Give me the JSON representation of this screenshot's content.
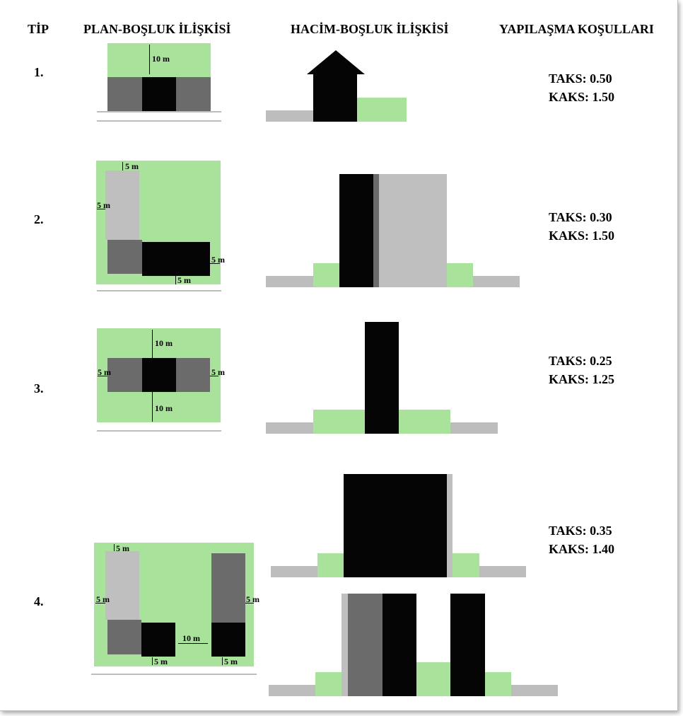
{
  "colors": {
    "green": "#a9e29a",
    "black": "#050505",
    "dark_gray": "#6b6b6b",
    "light_gray": "#bfbfbf",
    "ground": "#bdbdbd"
  },
  "headers": {
    "tip": "TİP",
    "plan": "PLAN-BOŞLUK İLİŞKİSİ",
    "hacim": "HACİM-BOŞLUK İLİŞKİSİ",
    "yapilasma": "YAPILAŞMA KOŞULLARI"
  },
  "types": [
    {
      "number": "1.",
      "takst": "TAKS: 0.50",
      "kaks": "KAKS: 1.50",
      "dims": [
        "10 m"
      ]
    },
    {
      "number": "2.",
      "takst": "TAKS: 0.30",
      "kaks": "KAKS: 1.50",
      "dims": [
        "5 m",
        "5 m",
        "5 m",
        "5 m"
      ]
    },
    {
      "number": "3.",
      "takst": "TAKS: 0.25",
      "kaks": "KAKS: 1.25",
      "dims": [
        "10 m",
        "5 m",
        "5 m",
        "10 m"
      ]
    },
    {
      "number": "4.",
      "takst": "TAKS: 0.35",
      "kaks": "KAKS: 1.40",
      "dims": [
        "5 m",
        "5 m",
        "10 m",
        "5 m",
        "5 m",
        "5 m"
      ]
    }
  ]
}
